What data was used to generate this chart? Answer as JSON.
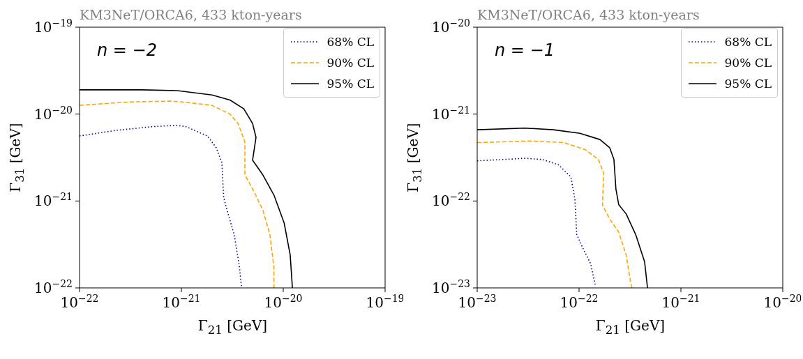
{
  "chart_data": [
    {
      "type": "line",
      "title": "KM3NeT/ORCA6, 433 kton-years",
      "xlabel": "Γ$_{21}$ [GeV]",
      "ylabel": "Γ$_{31}$ [GeV]",
      "log": "xy",
      "legend": "top right",
      "annotations": [
        "n = −2"
      ],
      "xlim": [
        1e-22,
        1e-19
      ],
      "ylim": [
        1e-22,
        1e-19
      ],
      "xticks": [
        {
          "value": 1e-22,
          "label": "10$^{−22}$"
        },
        {
          "value": 1e-21,
          "label": "10$^{−21}$"
        },
        {
          "value": 1e-20,
          "label": "10$^{−20}$"
        },
        {
          "value": 1e-19,
          "label": "10$^{−19}$"
        }
      ],
      "yticks": [
        {
          "value": 1e-22,
          "label": "10$^{−22}$"
        },
        {
          "value": 1e-21,
          "label": "10$^{−21}$"
        },
        {
          "value": 1e-20,
          "label": "10$^{−20}$"
        },
        {
          "value": 1e-19,
          "label": "10$^{−19}$"
        }
      ],
      "series": [
        {
          "name": "68% CL",
          "color": "#00008b",
          "line_style": "dotted",
          "x": [
            1e-22,
            2.3e-22,
            5.4e-22,
            8.7e-22,
            1.1e-21,
            1.8e-21,
            2.2e-21,
            2.5e-21,
            2.6e-21,
            2.8e-21,
            3.3e-21,
            3.7e-21,
            3.9e-21
          ],
          "values": [
            5.6e-21,
            6.5e-21,
            7.2e-21,
            7.4e-21,
            7.2e-21,
            5.6e-21,
            4.1e-21,
            2.75e-21,
            1.1e-21,
            7.9e-22,
            4.1e-22,
            1.8e-22,
            1e-22
          ]
        },
        {
          "name": "90% CL",
          "color": "#ffa500",
          "line_style": "dashed",
          "x": [
            1e-22,
            3.1e-22,
            7.8e-22,
            1.02e-21,
            2e-21,
            3e-21,
            3.6e-21,
            4.2e-21,
            4.2e-21,
            5e-21,
            6.3e-21,
            7.4e-21,
            8.1e-21,
            8.1e-21
          ],
          "values": [
            1.26e-20,
            1.38e-20,
            1.41e-20,
            1.38e-20,
            1.26e-20,
            1e-20,
            7.8e-21,
            4.8e-21,
            2e-21,
            1.38e-21,
            7.9e-22,
            4.1e-22,
            1.7e-22,
            1e-22
          ]
        },
        {
          "name": "95% CL",
          "color": "#000000",
          "line_style": "solid",
          "x": [
            1e-22,
            4.1e-22,
            9.1e-22,
            2e-21,
            3e-21,
            4.1e-21,
            5e-21,
            5.4e-21,
            5e-21,
            6.3e-21,
            8.1e-21,
            1.02e-20,
            1.17e-20,
            1.23e-20
          ],
          "values": [
            1.9e-20,
            1.9e-20,
            1.86e-20,
            1.66e-20,
            1.45e-20,
            1.15e-20,
            7.8e-21,
            5.4e-21,
            2.95e-21,
            2e-21,
            1.17e-21,
            5.6e-22,
            2.4e-22,
            1e-22
          ]
        }
      ]
    },
    {
      "type": "line",
      "title": "KM3NeT/ORCA6, 433 kton-years",
      "xlabel": "Γ$_{21}$ [GeV]",
      "ylabel": "Γ$_{31}$ [GeV]",
      "log": "xy",
      "legend": "top right",
      "annotations": [
        "n = −1"
      ],
      "xlim": [
        1e-23,
        1e-20
      ],
      "ylim": [
        1e-23,
        1e-20
      ],
      "xticks": [
        {
          "value": 1e-23,
          "label": "10$^{−23}$"
        },
        {
          "value": 1e-22,
          "label": "10$^{−22}$"
        },
        {
          "value": 1e-21,
          "label": "10$^{−21}$"
        },
        {
          "value": 1e-20,
          "label": "10$^{−20}$"
        }
      ],
      "yticks": [
        {
          "value": 1e-23,
          "label": "10$^{−23}$"
        },
        {
          "value": 1e-22,
          "label": "10$^{−22}$"
        },
        {
          "value": 1e-21,
          "label": "10$^{−21}$"
        },
        {
          "value": 1e-20,
          "label": "10$^{−20}$"
        }
      ],
      "series": [
        {
          "name": "68% CL",
          "color": "#00008b",
          "line_style": "dotted",
          "x": [
            1e-23,
            2.95e-23,
            4.4e-23,
            6.3e-23,
            8.3e-23,
            9.1e-23,
            9.5e-23,
            1.1e-22,
            1.3e-22,
            1.45e-22
          ],
          "values": [
            2.9e-22,
            3.1e-22,
            3e-22,
            2.6e-22,
            1.9e-22,
            1.05e-22,
            4.1e-23,
            2.8e-23,
            1.9e-23,
            1.05e-23
          ]
        },
        {
          "name": "90% CL",
          "color": "#ffa500",
          "line_style": "dashed",
          "x": [
            1e-23,
            3.3e-23,
            7.1e-23,
            1.15e-22,
            1.55e-22,
            1.74e-22,
            1.7e-22,
            2e-22,
            2.45e-22,
            2.9e-22,
            3.2e-22,
            3.3e-22
          ],
          "values": [
            4.7e-22,
            4.9e-22,
            4.7e-22,
            3.9e-22,
            3e-22,
            2.1e-22,
            8.9e-23,
            6.2e-23,
            4.4e-23,
            2.4e-23,
            1.17e-23,
            1e-23
          ]
        },
        {
          "name": "95% CL",
          "color": "#000000",
          "line_style": "solid",
          "x": [
            1e-23,
            2.95e-23,
            5.6e-23,
            1.02e-22,
            1.6e-22,
            2e-22,
            2.2e-22,
            2.3e-22,
            2.45e-22,
            2.9e-22,
            3.6e-22,
            4.4e-22,
            4.7e-22
          ],
          "values": [
            6.6e-22,
            6.9e-22,
            6.6e-22,
            6e-22,
            5.1e-22,
            4.1e-22,
            3e-22,
            1.38e-22,
            9.1e-23,
            7.1e-23,
            4.1e-23,
            2e-23,
            1e-23
          ]
        }
      ]
    }
  ]
}
